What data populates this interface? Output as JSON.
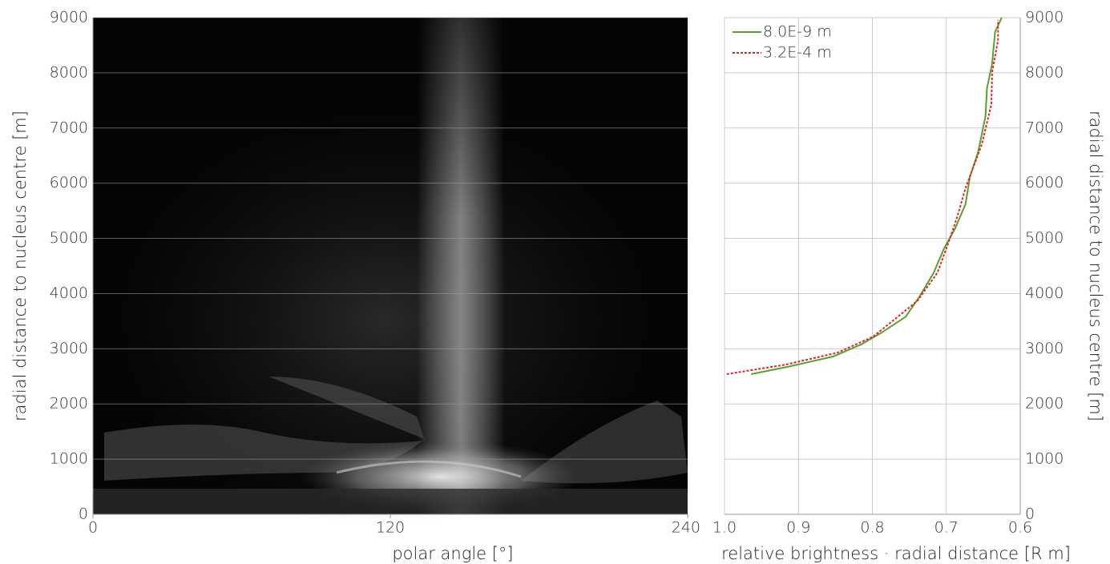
{
  "chart_data": [
    {
      "type": "image",
      "xlabel": "polar angle [°]",
      "ylabel": "radial distance to nucleus centre [m]",
      "xlim": [
        0,
        240
      ],
      "xticks": [
        0,
        120,
        240
      ],
      "ylim": [
        0,
        9000
      ],
      "yticks": [
        0,
        1000,
        2000,
        3000,
        4000,
        5000,
        6000,
        7000,
        8000,
        9000
      ],
      "grid": true
    },
    {
      "type": "line",
      "xlabel": "relative brightness · radial distance [R m]",
      "ylabel": "radial distance to nucleus centre [m]",
      "xlim": [
        1,
        0.6
      ],
      "xticks": [
        {
          "value": 1,
          "label": "1.0"
        },
        0.9,
        0.8,
        0.7,
        0.6
      ],
      "ylim": [
        0,
        9000
      ],
      "yticks": [
        0,
        1000,
        2000,
        3000,
        4000,
        5000,
        6000,
        7000,
        8000,
        9000
      ],
      "grid": true,
      "legend": "top-left",
      "series": [
        {
          "name": "8.0E-9 m",
          "color": "#5aa02c",
          "style": "solid",
          "x": [
            0.964,
            0.912,
            0.853,
            0.815,
            0.788,
            0.755,
            0.736,
            0.717,
            0.703,
            0.688,
            0.674,
            0.668,
            0.657,
            0.647,
            0.645,
            0.638,
            0.634,
            0.625
          ],
          "values": [
            2540,
            2680,
            2860,
            3080,
            3290,
            3580,
            3950,
            4380,
            4820,
            5180,
            5620,
            6120,
            6560,
            7210,
            7720,
            8160,
            8740,
            9000
          ]
        },
        {
          "name": "3.2E-4 m",
          "color": "#e8202a",
          "style": "dotted",
          "x": [
            0.997,
            0.918,
            0.847,
            0.799,
            0.772,
            0.739,
            0.712,
            0.696,
            0.685,
            0.674,
            0.652,
            0.639,
            0.638,
            0.63,
            0.63
          ],
          "values": [
            2540,
            2710,
            2930,
            3220,
            3510,
            3870,
            4380,
            4960,
            5400,
            5910,
            6700,
            7430,
            8010,
            8590,
            8960
          ]
        }
      ]
    }
  ]
}
